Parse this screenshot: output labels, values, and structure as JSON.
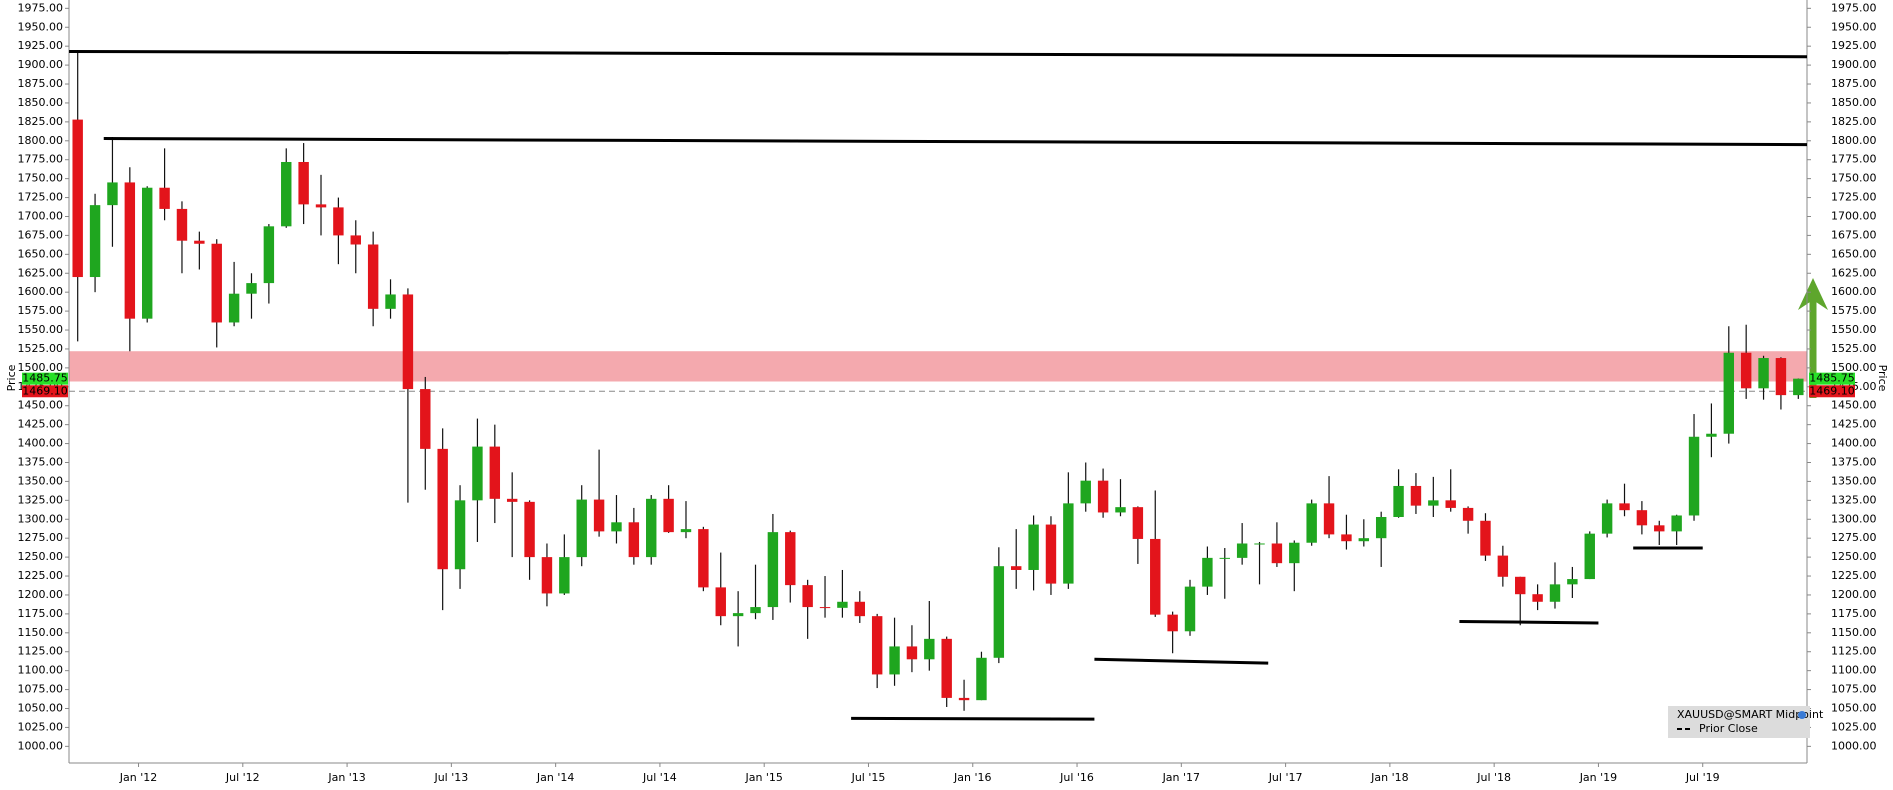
{
  "chart_data": {
    "type": "candlestick",
    "y_label": "Price",
    "x": [
      "2011-09",
      "2011-10",
      "2011-11",
      "2011-12",
      "2012-01",
      "2012-02",
      "2012-03",
      "2012-04",
      "2012-05",
      "2012-06",
      "2012-07",
      "2012-08",
      "2012-09",
      "2012-10",
      "2012-11",
      "2012-12",
      "2013-01",
      "2013-02",
      "2013-03",
      "2013-04",
      "2013-05",
      "2013-06",
      "2013-07",
      "2013-08",
      "2013-09",
      "2013-10",
      "2013-11",
      "2013-12",
      "2014-01",
      "2014-02",
      "2014-03",
      "2014-04",
      "2014-05",
      "2014-06",
      "2014-07",
      "2014-08",
      "2014-09",
      "2014-10",
      "2014-11",
      "2014-12",
      "2015-01",
      "2015-02",
      "2015-03",
      "2015-04",
      "2015-05",
      "2015-06",
      "2015-07",
      "2015-08",
      "2015-09",
      "2015-10",
      "2015-11",
      "2015-12",
      "2016-01",
      "2016-02",
      "2016-03",
      "2016-04",
      "2016-05",
      "2016-06",
      "2016-07",
      "2016-08",
      "2016-09",
      "2016-10",
      "2016-11",
      "2016-12",
      "2017-01",
      "2017-02",
      "2017-03",
      "2017-04",
      "2017-05",
      "2017-06",
      "2017-07",
      "2017-08",
      "2017-09",
      "2017-10",
      "2017-11",
      "2017-12",
      "2018-01",
      "2018-02",
      "2018-03",
      "2018-04",
      "2018-05",
      "2018-06",
      "2018-07",
      "2018-08",
      "2018-09",
      "2018-10",
      "2018-11",
      "2018-12",
      "2019-01",
      "2019-02",
      "2019-03",
      "2019-04",
      "2019-05",
      "2019-06",
      "2019-07",
      "2019-08",
      "2019-09",
      "2019-10",
      "2019-11",
      "2019-12"
    ],
    "open": [
      1828,
      1620,
      1715,
      1745,
      1565,
      1738,
      1710,
      1668,
      1664,
      1560,
      1598,
      1612,
      1687,
      1772,
      1716,
      1712,
      1675,
      1663,
      1578,
      1597,
      1472,
      1393,
      1234,
      1325,
      1396,
      1327,
      1323,
      1250,
      1202,
      1250,
      1326,
      1284,
      1296,
      1250,
      1327,
      1283,
      1287,
      1210,
      1172,
      1176,
      1184,
      1283,
      1213,
      1184,
      1183,
      1191,
      1172,
      1095,
      1132,
      1115,
      1142,
      1064,
      1061,
      1117,
      1238,
      1233,
      1293,
      1215,
      1321,
      1351,
      1309,
      1316,
      1274,
      1174,
      1152,
      1211,
      1249,
      1249,
      1268,
      1268,
      1242,
      1269,
      1321,
      1280,
      1271,
      1275,
      1303,
      1344,
      1318,
      1325,
      1315,
      1298,
      1252,
      1224,
      1201,
      1191,
      1214,
      1221,
      1281,
      1321,
      1312,
      1292,
      1284,
      1305,
      1409,
      1413,
      1520,
      1473,
      1513,
      1464
    ],
    "high": [
      1920,
      1730,
      1805,
      1765,
      1740,
      1790,
      1720,
      1680,
      1670,
      1640,
      1625,
      1690,
      1790,
      1797,
      1755,
      1725,
      1695,
      1680,
      1617,
      1605,
      1488,
      1420,
      1345,
      1433,
      1425,
      1362,
      1325,
      1268,
      1280,
      1345,
      1392,
      1332,
      1315,
      1332,
      1345,
      1324,
      1290,
      1256,
      1205,
      1240,
      1307,
      1285,
      1220,
      1225,
      1233,
      1205,
      1175,
      1170,
      1160,
      1192,
      1145,
      1088,
      1125,
      1263,
      1287,
      1305,
      1304,
      1362,
      1375,
      1367,
      1353,
      1317,
      1338,
      1178,
      1220,
      1264,
      1262,
      1295,
      1270,
      1296,
      1272,
      1326,
      1357,
      1306,
      1300,
      1310,
      1366,
      1361,
      1356,
      1366,
      1317,
      1308,
      1265,
      1224,
      1214,
      1243,
      1237,
      1284,
      1326,
      1347,
      1324,
      1298,
      1306,
      1439,
      1453,
      1555,
      1557,
      1516,
      1514,
      1486
    ],
    "low": [
      1535,
      1600,
      1660,
      1522,
      1560,
      1695,
      1625,
      1630,
      1527,
      1555,
      1565,
      1585,
      1685,
      1690,
      1675,
      1637,
      1625,
      1555,
      1565,
      1322,
      1339,
      1180,
      1208,
      1270,
      1295,
      1250,
      1220,
      1185,
      1200,
      1238,
      1277,
      1268,
      1240,
      1240,
      1282,
      1275,
      1205,
      1160,
      1132,
      1168,
      1167,
      1190,
      1142,
      1170,
      1170,
      1163,
      1077,
      1080,
      1098,
      1100,
      1052,
      1047,
      1061,
      1110,
      1208,
      1206,
      1200,
      1208,
      1310,
      1302,
      1304,
      1241,
      1171,
      1123,
      1146,
      1200,
      1195,
      1240,
      1214,
      1237,
      1205,
      1265,
      1275,
      1260,
      1264,
      1237,
      1302,
      1307,
      1303,
      1310,
      1281,
      1245,
      1211,
      1160,
      1180,
      1182,
      1196,
      1221,
      1276,
      1304,
      1280,
      1266,
      1266,
      1298,
      1382,
      1400,
      1459,
      1458,
      1445,
      1459
    ],
    "close": [
      1620,
      1715,
      1745,
      1565,
      1738,
      1710,
      1668,
      1664,
      1560,
      1598,
      1612,
      1687,
      1772,
      1716,
      1712,
      1675,
      1663,
      1578,
      1597,
      1472,
      1393,
      1234,
      1325,
      1396,
      1327,
      1323,
      1250,
      1202,
      1250,
      1326,
      1284,
      1296,
      1250,
      1327,
      1283,
      1287,
      1210,
      1172,
      1176,
      1184,
      1283,
      1213,
      1184,
      1183,
      1191,
      1172,
      1095,
      1132,
      1115,
      1142,
      1064,
      1061,
      1117,
      1238,
      1233,
      1293,
      1215,
      1321,
      1351,
      1309,
      1316,
      1274,
      1174,
      1152,
      1211,
      1249,
      1249,
      1268,
      1268,
      1242,
      1269,
      1321,
      1280,
      1271,
      1275,
      1303,
      1344,
      1318,
      1325,
      1315,
      1298,
      1252,
      1224,
      1201,
      1191,
      1214,
      1221,
      1281,
      1321,
      1312,
      1292,
      1284,
      1305,
      1409,
      1413,
      1520,
      1473,
      1513,
      1464,
      1485.75
    ],
    "up_color": "#1fa61f",
    "down_color": "#e3141b",
    "xlim": [
      "2011-09",
      "2020-01"
    ],
    "xticks": [
      {
        "value": "2012-01",
        "label": "Jan '12"
      },
      {
        "value": "2012-07",
        "label": "Jul '12"
      },
      {
        "value": "2013-01",
        "label": "Jan '13"
      },
      {
        "value": "2013-07",
        "label": "Jul '13"
      },
      {
        "value": "2014-01",
        "label": "Jan '14"
      },
      {
        "value": "2014-07",
        "label": "Jul '14"
      },
      {
        "value": "2015-01",
        "label": "Jan '15"
      },
      {
        "value": "2015-07",
        "label": "Jul '15"
      },
      {
        "value": "2016-01",
        "label": "Jan '16"
      },
      {
        "value": "2016-07",
        "label": "Jul '16"
      },
      {
        "value": "2017-01",
        "label": "Jan '17"
      },
      {
        "value": "2017-07",
        "label": "Jul '17"
      },
      {
        "value": "2018-01",
        "label": "Jan '18"
      },
      {
        "value": "2018-07",
        "label": "Jul '18"
      },
      {
        "value": "2019-01",
        "label": "Jan '19"
      },
      {
        "value": "2019-07",
        "label": "Jul '19"
      }
    ],
    "ylim": [
      978,
      1986
    ],
    "yticks": [
      {
        "value": 1000,
        "label": "1000.00"
      },
      {
        "value": 1025,
        "label": "1025.00"
      },
      {
        "value": 1050,
        "label": "1050.00"
      },
      {
        "value": 1075,
        "label": "1075.00"
      },
      {
        "value": 1100,
        "label": "1100.00"
      },
      {
        "value": 1125,
        "label": "1125.00"
      },
      {
        "value": 1150,
        "label": "1150.00"
      },
      {
        "value": 1175,
        "label": "1175.00"
      },
      {
        "value": 1200,
        "label": "1200.00"
      },
      {
        "value": 1225,
        "label": "1225.00"
      },
      {
        "value": 1250,
        "label": "1250.00"
      },
      {
        "value": 1275,
        "label": "1275.00"
      },
      {
        "value": 1300,
        "label": "1300.00"
      },
      {
        "value": 1325,
        "label": "1325.00"
      },
      {
        "value": 1350,
        "label": "1350.00"
      },
      {
        "value": 1375,
        "label": "1375.00"
      },
      {
        "value": 1400,
        "label": "1400.00"
      },
      {
        "value": 1425,
        "label": "1425.00"
      },
      {
        "value": 1450,
        "label": "1450.00"
      },
      {
        "value": 1475,
        "label": "1475.00"
      },
      {
        "value": 1500,
        "label": "1500.00"
      },
      {
        "value": 1525,
        "label": "1525.00"
      },
      {
        "value": 1550,
        "label": "1550.00"
      },
      {
        "value": 1575,
        "label": "1575.00"
      },
      {
        "value": 1600,
        "label": "1600.00"
      },
      {
        "value": 1625,
        "label": "1625.00"
      },
      {
        "value": 1650,
        "label": "1650.00"
      },
      {
        "value": 1675,
        "label": "1675.00"
      },
      {
        "value": 1700,
        "label": "1700.00"
      },
      {
        "value": 1725,
        "label": "1725.00"
      },
      {
        "value": 1750,
        "label": "1750.00"
      },
      {
        "value": 1775,
        "label": "1775.00"
      },
      {
        "value": 1800,
        "label": "1800.00"
      },
      {
        "value": 1825,
        "label": "1825.00"
      },
      {
        "value": 1850,
        "label": "1850.00"
      },
      {
        "value": 1875,
        "label": "1875.00"
      },
      {
        "value": 1900,
        "label": "1900.00"
      },
      {
        "value": 1925,
        "label": "1925.00"
      },
      {
        "value": 1950,
        "label": "1950.00"
      },
      {
        "value": 1975,
        "label": "1975.00"
      }
    ],
    "zone": [
      1482,
      1522
    ],
    "zone_color": "#f4a9ae",
    "last_price": 1485.75,
    "prior_close": {
      "value": 1469.1,
      "label": "1469.10"
    },
    "trend_lines": [
      {
        "x": [
          "2011-09",
          "2020-01"
        ],
        "y": [
          1918,
          1911
        ]
      },
      {
        "x": [
          "2011-11",
          "2020-01"
        ],
        "y": [
          1803,
          1795
        ]
      },
      {
        "x": [
          "2015-06",
          "2016-08"
        ],
        "y": [
          1037,
          1036
        ]
      },
      {
        "x": [
          "2016-08",
          "2017-06"
        ],
        "y": [
          1115,
          1110
        ]
      },
      {
        "x": [
          "2018-05",
          "2019-01"
        ],
        "y": [
          1165,
          1163
        ]
      },
      {
        "x": [
          "2019-03",
          "2019-07"
        ],
        "y": [
          1262,
          1262
        ]
      }
    ],
    "legend": {
      "title": "XAUUSD@SMART Midpoint",
      "item": "Prior Close"
    }
  }
}
